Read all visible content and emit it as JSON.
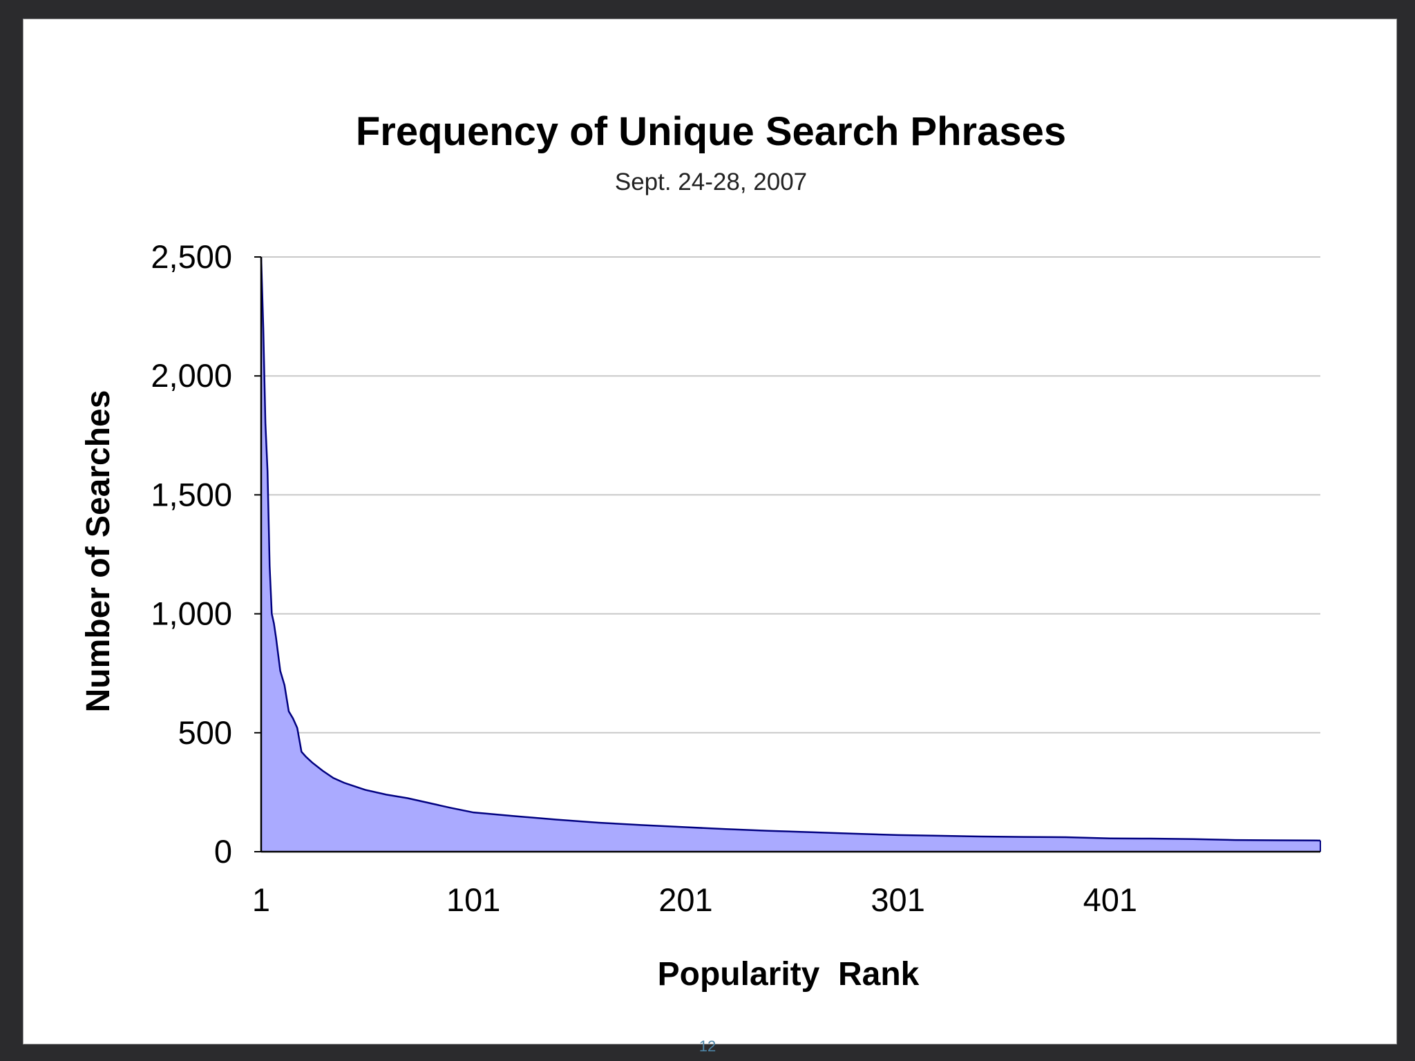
{
  "slide": {
    "page_number": "12"
  },
  "chart_data": {
    "type": "area",
    "title": "Frequency of Unique Search Phrases",
    "subtitle": "Sept. 24-28, 2007",
    "xlabel": "Popularity  Rank",
    "ylabel": "Number of Searches",
    "xlim": [
      1,
      500
    ],
    "ylim": [
      0,
      2500
    ],
    "y_ticks": [
      0,
      500,
      1000,
      1500,
      2000,
      2500
    ],
    "y_tick_labels": [
      "0",
      "500",
      "1,000",
      "1,500",
      "2,000",
      "2,500"
    ],
    "x_ticks": [
      1,
      101,
      201,
      301,
      401
    ],
    "x_tick_labels": [
      "1",
      "101",
      "201",
      "301",
      "401"
    ],
    "grid": true,
    "legend": "none",
    "fill_color": "#aaaaff",
    "line_color": "#000080",
    "series": [
      {
        "x": [
          1,
          2,
          3,
          4,
          5,
          6,
          7,
          8,
          10,
          12,
          14,
          16,
          18,
          20,
          22,
          25,
          30,
          35,
          40,
          45,
          50,
          60,
          70,
          80,
          90,
          101,
          120,
          140,
          160,
          180,
          201,
          220,
          240,
          260,
          280,
          301,
          320,
          340,
          360,
          380,
          401,
          420,
          440,
          460,
          480,
          500
        ],
        "values": [
          2500,
          2200,
          1800,
          1600,
          1200,
          1000,
          960,
          900,
          760,
          700,
          590,
          560,
          520,
          420,
          400,
          375,
          340,
          310,
          290,
          275,
          260,
          240,
          225,
          205,
          185,
          165,
          150,
          135,
          122,
          112,
          103,
          95,
          88,
          82,
          76,
          70,
          67,
          64,
          62,
          61,
          56,
          55,
          53,
          49,
          48,
          47
        ]
      }
    ]
  }
}
